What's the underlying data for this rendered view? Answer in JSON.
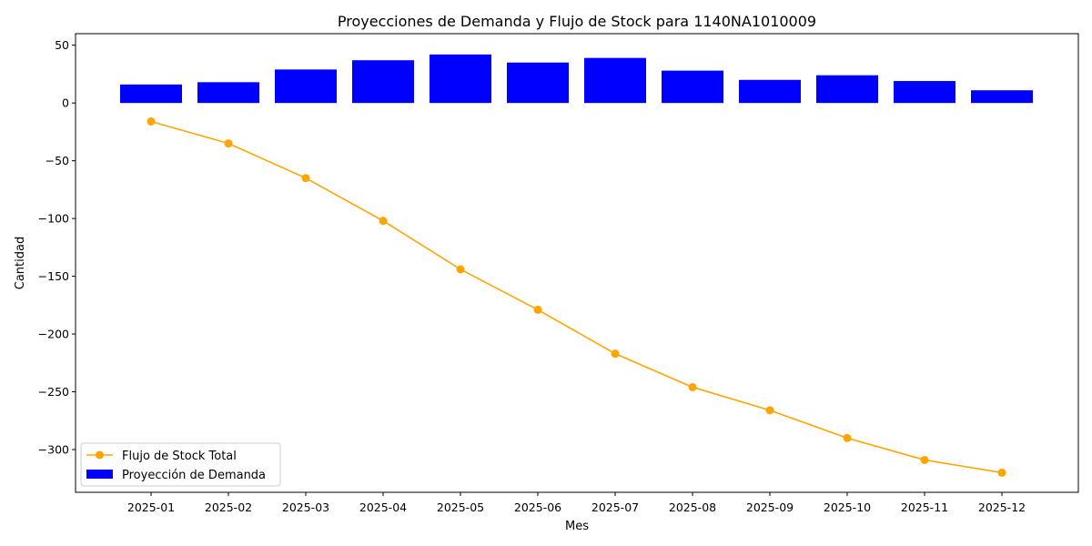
{
  "chart_data": {
    "type": "bar+line",
    "title": "Proyecciones de Demanda y Flujo de Stock para 1140NA1010009",
    "xlabel": "Mes",
    "ylabel": "Cantidad",
    "categories": [
      "2025-01",
      "2025-02",
      "2025-03",
      "2025-04",
      "2025-05",
      "2025-06",
      "2025-07",
      "2025-08",
      "2025-09",
      "2025-10",
      "2025-11",
      "2025-12"
    ],
    "ylim": [
      -337,
      60
    ],
    "yticks": [
      50,
      0,
      -50,
      -100,
      -150,
      -200,
      -250,
      -300
    ],
    "ytick_labels": [
      "50",
      "0",
      "−50",
      "−100",
      "−150",
      "−200",
      "−250",
      "−300"
    ],
    "grid": false,
    "legend_position": "lower-left",
    "series": [
      {
        "name": "Flujo de Stock Total",
        "kind": "line",
        "color": "#ffa500",
        "marker": "circle",
        "values": [
          -16,
          -35,
          -65,
          -102,
          -144,
          -179,
          -217,
          -246,
          -266,
          -290,
          -309,
          -320
        ]
      },
      {
        "name": "Proyección de Demanda",
        "kind": "bar",
        "color": "#0000ff",
        "values": [
          16,
          18,
          29,
          37,
          42,
          35,
          39,
          28,
          20,
          24,
          19,
          11
        ]
      }
    ]
  }
}
